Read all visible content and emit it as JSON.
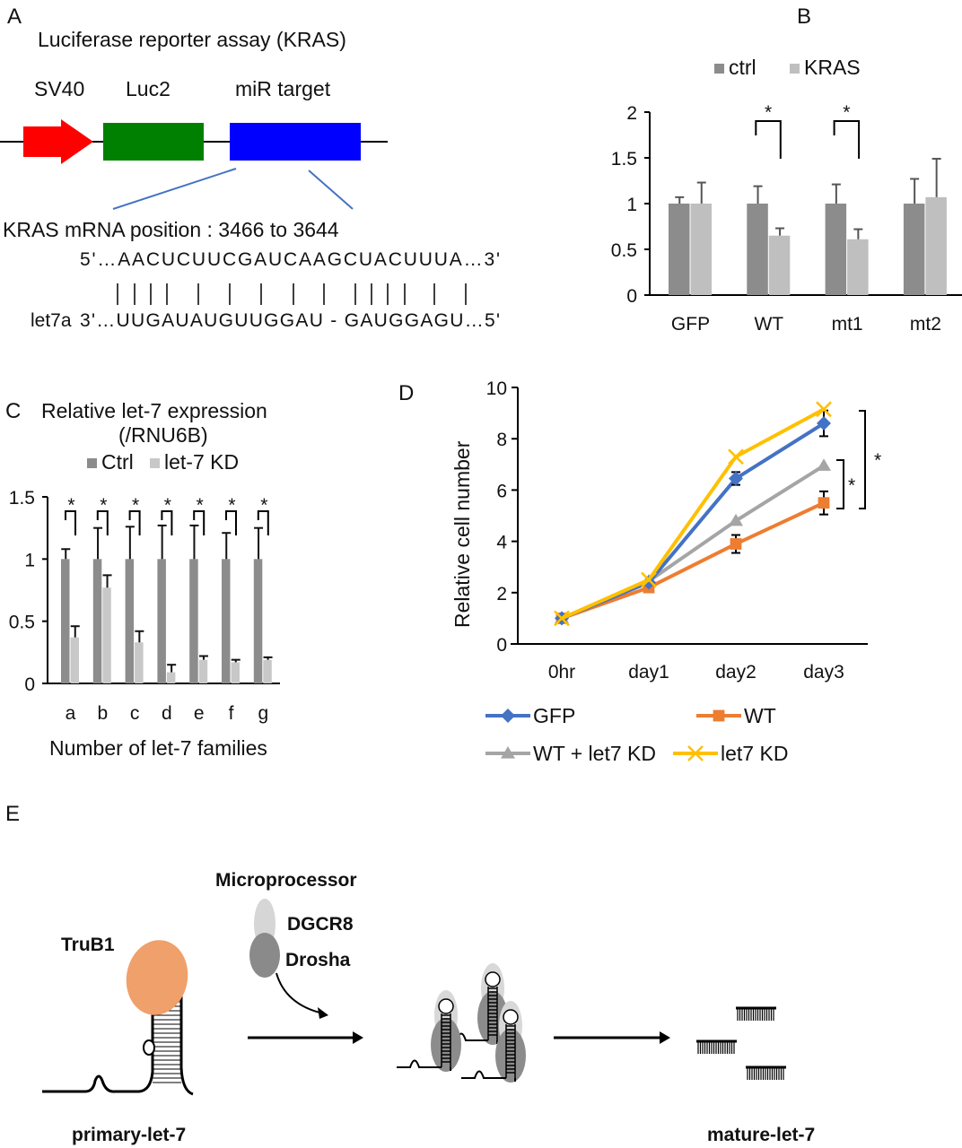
{
  "panels": {
    "a": "A",
    "b": "B",
    "c": "C",
    "d": "D",
    "e": "E"
  },
  "panel_a": {
    "title": "Luciferase reporter assay (KRAS)",
    "elements": [
      "SV40",
      "Luc2",
      "miR target"
    ],
    "colors": {
      "sv40": "#ff0000",
      "luc2": "#008000",
      "mir_target": "#0000ff",
      "connector": "#4472c4"
    },
    "position_text": "KRAS mRNA position : 3466 to 3644",
    "target_seq": "5'…AACUCUUCGAUCAAGCUACUUUA…3'",
    "pairing": "| | | |    |    |    |    |    |    | | | |    |    |",
    "let7_label": "let7a",
    "let7_seq": "3'…UUGAUAUGUUGGAU - GAUGGAGU…5'"
  },
  "chart_data": [
    {
      "id": "B",
      "type": "bar",
      "categories": [
        "GFP",
        "WT",
        "mt1",
        "mt2"
      ],
      "series": [
        {
          "name": "ctrl",
          "color": "#8c8c8c",
          "values": [
            1,
            1,
            1,
            1
          ],
          "error_upper": [
            1.07,
            1.19,
            1.21,
            1.27
          ]
        },
        {
          "name": "KRAS",
          "color": "#bfbfbf",
          "values": [
            1,
            0.65,
            0.61,
            1.07
          ],
          "error_upper": [
            1.23,
            0.73,
            0.72,
            1.49
          ]
        }
      ],
      "yticks": [
        "0",
        "0.5",
        "1",
        "1.5",
        "2"
      ],
      "ylim": [
        0,
        2
      ],
      "legend": "top",
      "significance": [
        {
          "category": "WT",
          "label": "*"
        },
        {
          "category": "mt1",
          "label": "*"
        }
      ]
    },
    {
      "id": "C",
      "type": "bar",
      "title": "Relative let-7 expression",
      "subtitle": "(/RNU6B)",
      "xlabel": "Number of let-7 families",
      "categories": [
        "a",
        "b",
        "c",
        "d",
        "e",
        "f",
        "g"
      ],
      "series": [
        {
          "name": "Ctrl",
          "color": "#8c8c8c",
          "values": [
            1,
            1,
            1,
            1,
            1,
            1,
            1
          ],
          "error_upper": [
            1.08,
            1.25,
            1.26,
            1.27,
            1.27,
            1.21,
            1.25
          ]
        },
        {
          "name": "let-7 KD",
          "color": "#c8c8c8",
          "values": [
            0.37,
            0.77,
            0.33,
            0.09,
            0.19,
            0.17,
            0.19
          ],
          "error_upper": [
            0.46,
            0.87,
            0.42,
            0.15,
            0.22,
            0.19,
            0.21
          ]
        }
      ],
      "yticks": [
        "0",
        "0.5",
        "1",
        "1.5"
      ],
      "ylim": [
        0,
        1.5
      ],
      "legend": "top",
      "significance_label": "*"
    },
    {
      "id": "D",
      "type": "line",
      "ylabel": "Relative cell number",
      "categories": [
        "0hr",
        "day1",
        "day2",
        "day3"
      ],
      "series": [
        {
          "name": "GFP",
          "color": "#4472c4",
          "marker": "diamond",
          "values": [
            1,
            2.4,
            6.45,
            8.6
          ],
          "error": [
            0,
            0,
            0.25,
            0.5
          ]
        },
        {
          "name": "WT",
          "color": "#ed7d31",
          "marker": "square",
          "values": [
            1,
            2.2,
            3.9,
            5.5
          ],
          "error": [
            0,
            0,
            0.35,
            0.45
          ]
        },
        {
          "name": "WT + let7 KD",
          "color": "#a5a5a5",
          "marker": "triangle",
          "values": [
            1,
            2.45,
            4.8,
            6.95
          ],
          "error": [
            0,
            0,
            0,
            0
          ]
        },
        {
          "name": "let7 KD",
          "color": "#ffc000",
          "marker": "x",
          "values": [
            1,
            2.5,
            7.3,
            9.15
          ],
          "error": [
            0,
            0,
            0,
            0
          ]
        }
      ],
      "yticks": [
        "0",
        "2",
        "4",
        "6",
        "8",
        "10"
      ],
      "ylim": [
        0,
        10
      ],
      "legend": "bottom",
      "significance_label": "*"
    }
  ],
  "panel_e": {
    "microprocessor": "Microprocessor",
    "dgcr8": "DGCR8",
    "drosha": "Drosha",
    "trub1": "TruB1",
    "primary": "primary-let-7",
    "mature": "mature-let-7",
    "colors": {
      "trub1": "#f0a06a",
      "dgcr8": "#cfcfcf",
      "drosha": "#8a8a8a"
    }
  }
}
